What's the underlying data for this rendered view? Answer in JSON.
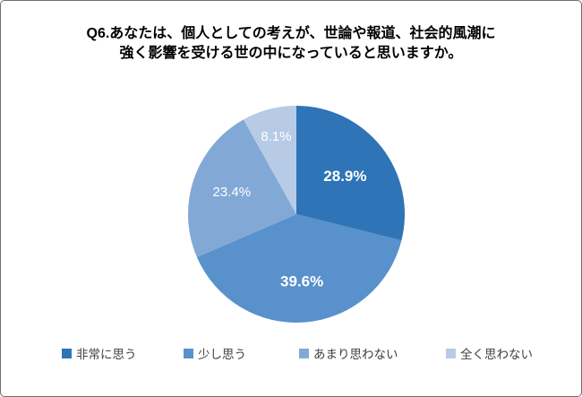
{
  "title": {
    "line1": "Q6.あなたは、個人としての考えが、世論や報道、社会的風潮に",
    "line2": "強く影響を受ける世の中になっていると思いますか。"
  },
  "chart_data": {
    "type": "pie",
    "title": "Q6.あなたは、個人としての考えが、世論や報道、社会的風潮に強く影響を受ける世の中になっていると思いますか。",
    "legend_position": "bottom",
    "start_angle_deg": 0,
    "direction": "clockwise",
    "categories": [
      "非常に思う",
      "少し思う",
      "あまり思わない",
      "全く思わない"
    ],
    "values": [
      28.9,
      39.6,
      23.4,
      8.1
    ],
    "slices": [
      {
        "label": "非常に思う",
        "value": 28.9,
        "display": "28.9%",
        "color": "#2E74B7"
      },
      {
        "label": "少し思う",
        "value": 39.6,
        "display": "39.6%",
        "color": "#5891CB"
      },
      {
        "label": "あまり思わない",
        "value": 23.4,
        "display": "23.4%",
        "color": "#82A9D6"
      },
      {
        "label": "全く思わない",
        "value": 8.1,
        "display": "8.1%",
        "color": "#B7CBE7"
      }
    ],
    "label_text_color": "#ffffff"
  }
}
